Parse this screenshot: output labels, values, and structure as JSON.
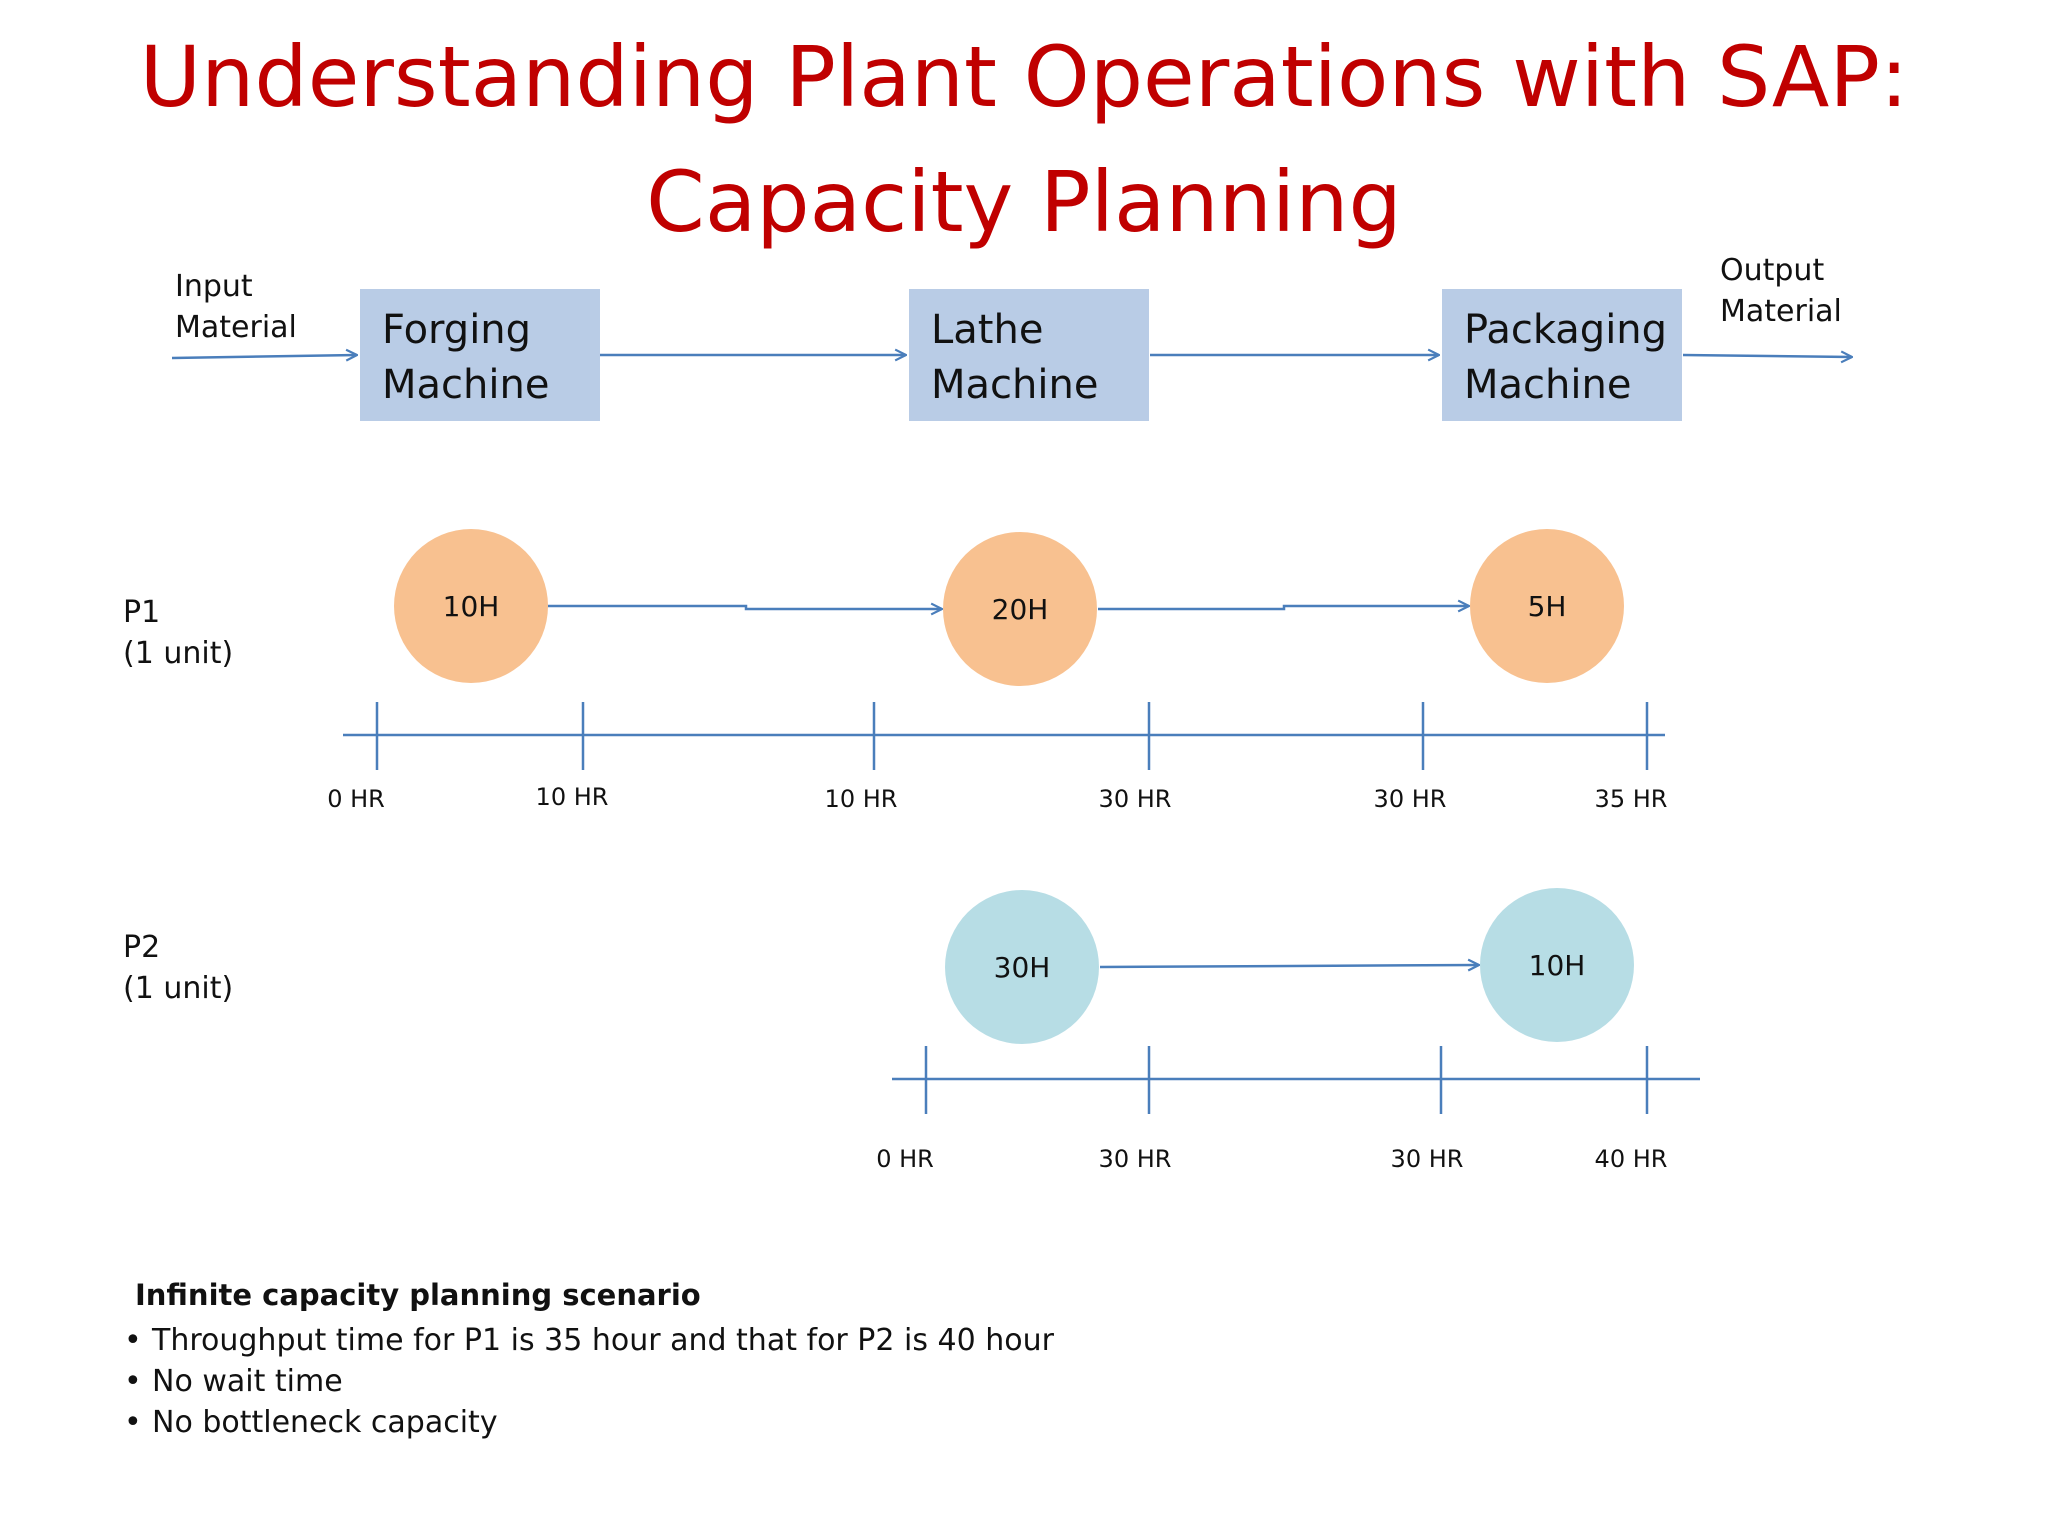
{
  "title": {
    "line1": "Understanding Plant Operations with SAP:",
    "line2": "Capacity Planning"
  },
  "flow": {
    "input_label": [
      "Input",
      "Material"
    ],
    "output_label": [
      "Output",
      "Material"
    ],
    "machines": [
      [
        "Forging",
        "Machine"
      ],
      [
        "Lathe",
        "Machine"
      ],
      [
        "Packaging",
        "Machine"
      ]
    ]
  },
  "products": [
    {
      "label": [
        "P1",
        "(1 unit)"
      ],
      "operations": [
        "10H",
        "20H",
        "5H"
      ],
      "ticks": [
        "0 HR",
        "10 HR",
        "10 HR",
        "30 HR",
        "30 HR",
        "35 HR"
      ]
    },
    {
      "label": [
        "P2",
        "(1 unit)"
      ],
      "operations": [
        "30H",
        "10H"
      ],
      "ticks": [
        "0 HR",
        "30 HR",
        "30 HR",
        "40 HR"
      ]
    }
  ],
  "notes": {
    "heading": "Infinite capacity planning scenario",
    "bullets": [
      "Throughput time for P1 is 35 hour and that for P2 is 40 hour",
      "No wait time",
      "No bottleneck capacity"
    ]
  },
  "colors": {
    "title": "#c00000",
    "machine_box": "#b9cce6",
    "p1_operation": "#f8c190",
    "p2_operation": "#b7dde5",
    "connector": "#4a7ebb"
  }
}
